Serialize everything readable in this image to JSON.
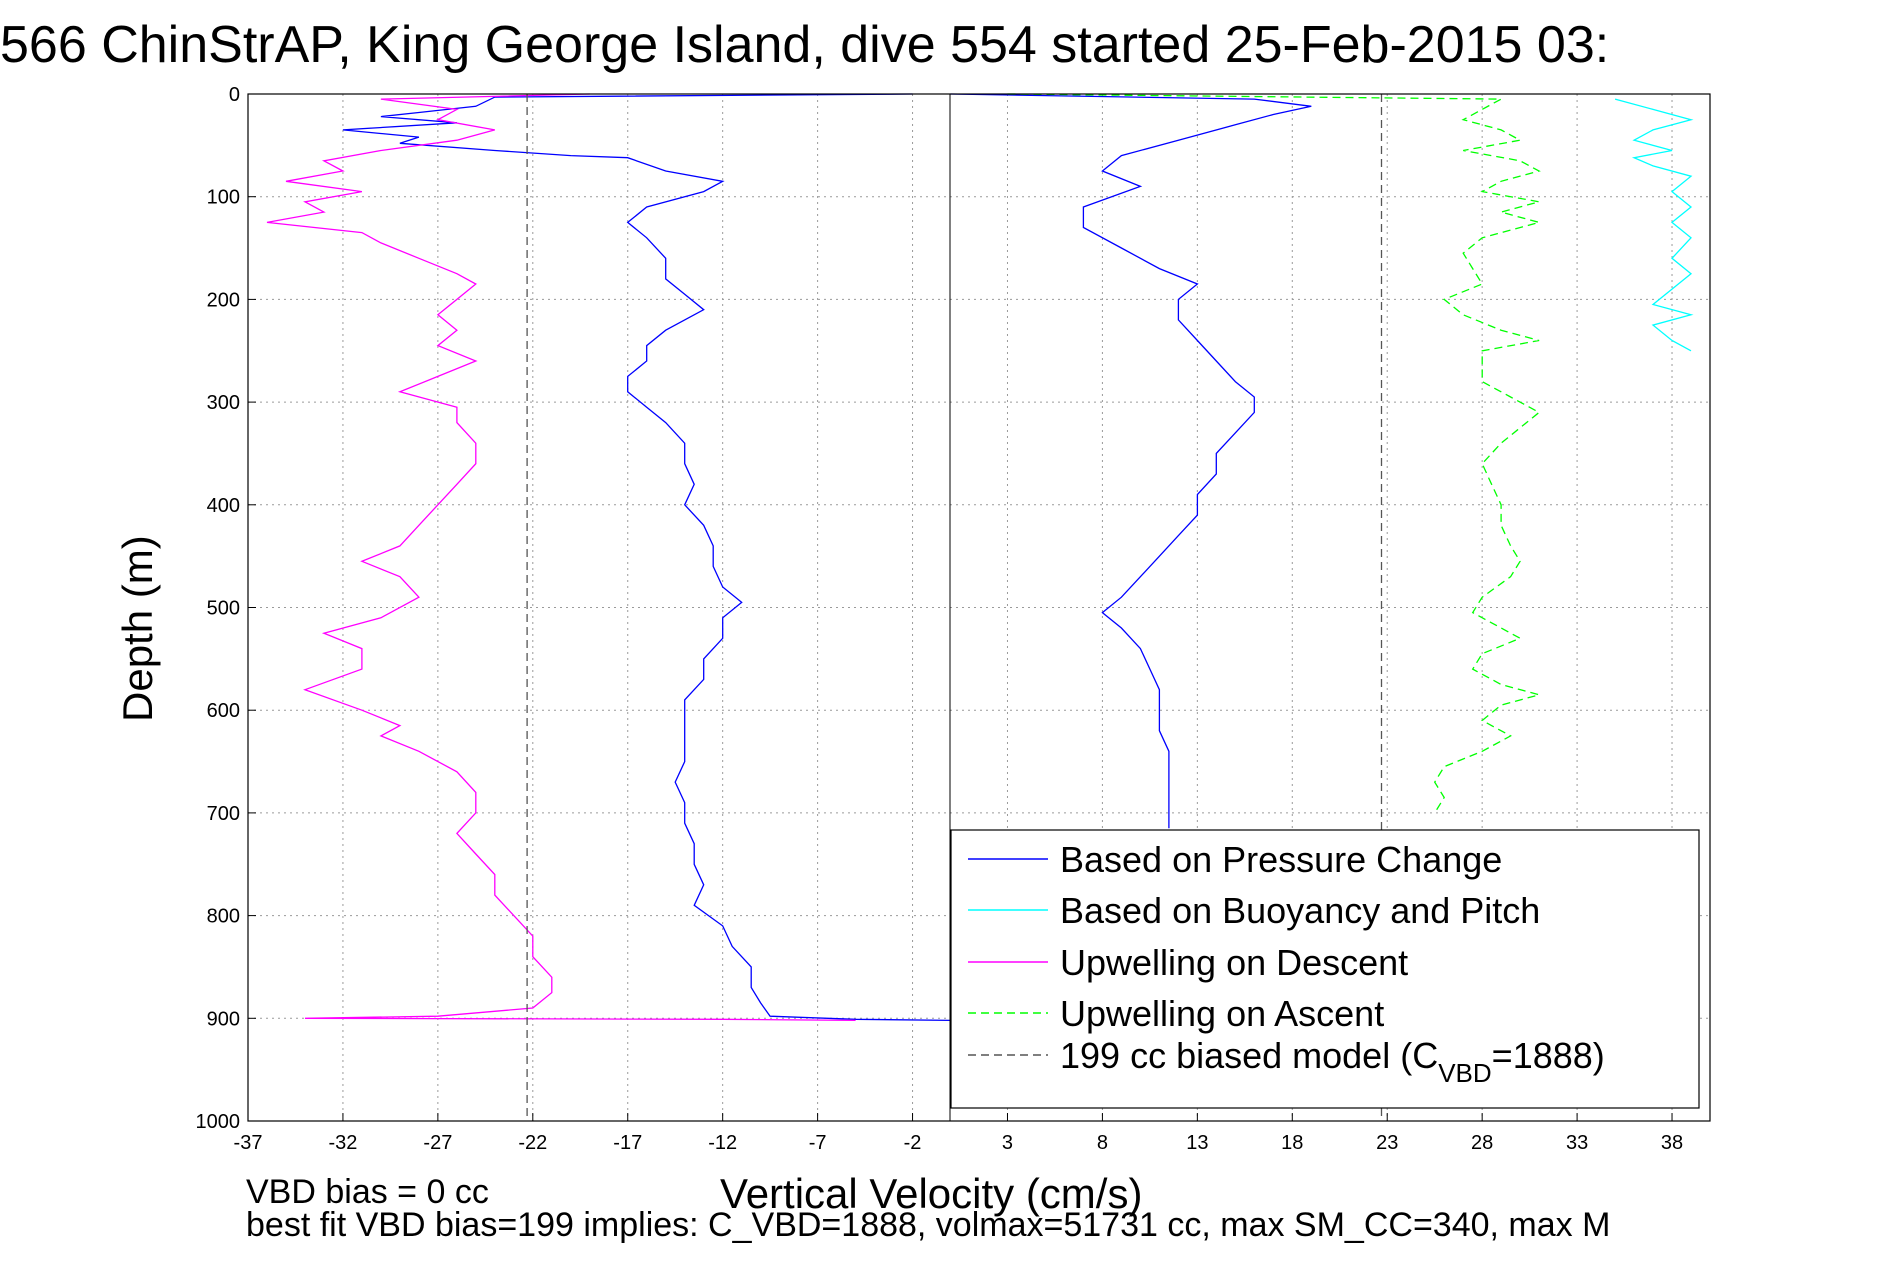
{
  "chart_data": {
    "type": "line",
    "title": "566 ChinStrAP, King George Island, dive 554 started 25-Feb-2015 03:",
    "xlabel": "Vertical Velocity (cm/s)",
    "ylabel": "Depth (m)",
    "xlim": [
      -37,
      40
    ],
    "ylim": [
      0,
      1000
    ],
    "y_reversed": true,
    "grid": true,
    "legend_position": "lower-right",
    "x_ticks": [
      "-37",
      "-32",
      "-27",
      "-22",
      "-17",
      "-12",
      "-7",
      "-2",
      "3",
      "8",
      "13",
      "18",
      "23",
      "28",
      "33",
      "38"
    ],
    "y_ticks": [
      "0",
      "100",
      "200",
      "300",
      "400",
      "500",
      "600",
      "700",
      "800",
      "900",
      "1000"
    ],
    "series": [
      {
        "name": "Based on Pressure Change",
        "color": "#0000ff",
        "style": "solid",
        "points": [
          [
            -2,
            0
          ],
          [
            -24,
            3
          ],
          [
            -25,
            12
          ],
          [
            -28,
            18
          ],
          [
            -30,
            22
          ],
          [
            -26,
            28
          ],
          [
            -32,
            35
          ],
          [
            -28,
            42
          ],
          [
            -29,
            48
          ],
          [
            -24,
            55
          ],
          [
            -20,
            60
          ],
          [
            -17,
            62
          ],
          [
            -15,
            75
          ],
          [
            -12,
            85
          ],
          [
            -13,
            95
          ],
          [
            -16,
            110
          ],
          [
            -17,
            125
          ],
          [
            -16,
            140
          ],
          [
            -15,
            160
          ],
          [
            -15,
            180
          ],
          [
            -14,
            195
          ],
          [
            -13,
            210
          ],
          [
            -15,
            230
          ],
          [
            -16,
            245
          ],
          [
            -16,
            260
          ],
          [
            -17,
            275
          ],
          [
            -17,
            290
          ],
          [
            -16,
            305
          ],
          [
            -15,
            320
          ],
          [
            -14,
            340
          ],
          [
            -14,
            360
          ],
          [
            -13.5,
            380
          ],
          [
            -14,
            400
          ],
          [
            -13,
            420
          ],
          [
            -12.5,
            440
          ],
          [
            -12.5,
            460
          ],
          [
            -12,
            480
          ],
          [
            -11,
            495
          ],
          [
            -12,
            510
          ],
          [
            -12,
            530
          ],
          [
            -13,
            550
          ],
          [
            -13,
            570
          ],
          [
            -14,
            590
          ],
          [
            -14,
            610
          ],
          [
            -14,
            630
          ],
          [
            -14,
            650
          ],
          [
            -14.5,
            670
          ],
          [
            -14,
            690
          ],
          [
            -14,
            710
          ],
          [
            -13.5,
            730
          ],
          [
            -13.5,
            750
          ],
          [
            -13,
            770
          ],
          [
            -13.5,
            790
          ],
          [
            -12,
            810
          ],
          [
            -11.5,
            830
          ],
          [
            -10.5,
            850
          ],
          [
            -10.5,
            870
          ],
          [
            -10,
            885
          ],
          [
            -9.5,
            898
          ],
          [
            -5,
            901
          ],
          [
            0,
            902
          ]
        ]
      },
      {
        "name": "Based on Pressure Change",
        "color": "#0000ff",
        "style": "solid",
        "points": [
          [
            0,
            0
          ],
          [
            16,
            5
          ],
          [
            19,
            12
          ],
          [
            17,
            20
          ],
          [
            15,
            30
          ],
          [
            12,
            45
          ],
          [
            9,
            60
          ],
          [
            8,
            75
          ],
          [
            10,
            90
          ],
          [
            7,
            110
          ],
          [
            7,
            130
          ],
          [
            9,
            150
          ],
          [
            11,
            170
          ],
          [
            13,
            185
          ],
          [
            12,
            200
          ],
          [
            12,
            220
          ],
          [
            13,
            240
          ],
          [
            14,
            260
          ],
          [
            15,
            280
          ],
          [
            16,
            295
          ],
          [
            16,
            310
          ],
          [
            15,
            330
          ],
          [
            14,
            350
          ],
          [
            14,
            370
          ],
          [
            13,
            390
          ],
          [
            13,
            410
          ],
          [
            12,
            430
          ],
          [
            11,
            450
          ],
          [
            10,
            470
          ],
          [
            9,
            490
          ],
          [
            8,
            505
          ],
          [
            9,
            520
          ],
          [
            10,
            540
          ],
          [
            10.5,
            560
          ],
          [
            11,
            580
          ],
          [
            11,
            600
          ],
          [
            11,
            620
          ],
          [
            11.5,
            640
          ],
          [
            11.5,
            660
          ],
          [
            11.5,
            680
          ],
          [
            11.5,
            700
          ],
          [
            11.5,
            715
          ]
        ]
      },
      {
        "name": "Based on Buoyancy and Pitch",
        "color": "#00ffff",
        "style": "solid",
        "points": [
          [
            35,
            5
          ],
          [
            37,
            15
          ],
          [
            39,
            25
          ],
          [
            37,
            35
          ],
          [
            36,
            45
          ],
          [
            38,
            55
          ],
          [
            36,
            62
          ],
          [
            37,
            70
          ],
          [
            39,
            80
          ],
          [
            38,
            95
          ],
          [
            39,
            110
          ],
          [
            38,
            125
          ],
          [
            39,
            140
          ],
          [
            38,
            160
          ],
          [
            39,
            175
          ],
          [
            38,
            190
          ],
          [
            37,
            205
          ],
          [
            39,
            215
          ],
          [
            37,
            225
          ],
          [
            38,
            240
          ],
          [
            39,
            250
          ]
        ]
      },
      {
        "name": "Upwelling on Descent",
        "color": "#ff00ff",
        "style": "solid",
        "points": [
          [
            -19,
            0
          ],
          [
            -30,
            5
          ],
          [
            -26,
            15
          ],
          [
            -27,
            25
          ],
          [
            -24,
            35
          ],
          [
            -26,
            45
          ],
          [
            -30,
            55
          ],
          [
            -33,
            65
          ],
          [
            -32,
            75
          ],
          [
            -35,
            85
          ],
          [
            -31,
            95
          ],
          [
            -34,
            105
          ],
          [
            -33,
            115
          ],
          [
            -36,
            125
          ],
          [
            -31,
            135
          ],
          [
            -30,
            145
          ],
          [
            -28,
            160
          ],
          [
            -26,
            175
          ],
          [
            -25,
            185
          ],
          [
            -26,
            200
          ],
          [
            -27,
            215
          ],
          [
            -26,
            230
          ],
          [
            -27,
            245
          ],
          [
            -25,
            260
          ],
          [
            -27,
            275
          ],
          [
            -29,
            290
          ],
          [
            -26,
            305
          ],
          [
            -26,
            320
          ],
          [
            -25,
            340
          ],
          [
            -25,
            360
          ],
          [
            -26,
            380
          ],
          [
            -27,
            400
          ],
          [
            -28,
            420
          ],
          [
            -29,
            440
          ],
          [
            -31,
            455
          ],
          [
            -29,
            470
          ],
          [
            -28,
            490
          ],
          [
            -30,
            510
          ],
          [
            -33,
            525
          ],
          [
            -31,
            540
          ],
          [
            -31,
            560
          ],
          [
            -34,
            580
          ],
          [
            -31,
            600
          ],
          [
            -29,
            615
          ],
          [
            -30,
            625
          ],
          [
            -28,
            640
          ],
          [
            -26,
            660
          ],
          [
            -25,
            680
          ],
          [
            -25,
            700
          ],
          [
            -26,
            720
          ],
          [
            -25,
            740
          ],
          [
            -24,
            760
          ],
          [
            -24,
            780
          ],
          [
            -23,
            800
          ],
          [
            -22,
            820
          ],
          [
            -22,
            840
          ],
          [
            -21,
            860
          ],
          [
            -21,
            875
          ],
          [
            -22,
            890
          ],
          [
            -27,
            898
          ],
          [
            -34,
            900
          ],
          [
            -12,
            901
          ],
          [
            -5,
            902
          ]
        ]
      },
      {
        "name": "Upwelling on Ascent",
        "color": "#00ff00",
        "style": "dashed",
        "points": [
          [
            3,
            0
          ],
          [
            29,
            5
          ],
          [
            28,
            15
          ],
          [
            27,
            25
          ],
          [
            29,
            35
          ],
          [
            30,
            45
          ],
          [
            27,
            55
          ],
          [
            30,
            65
          ],
          [
            31,
            75
          ],
          [
            29,
            85
          ],
          [
            28,
            95
          ],
          [
            31,
            105
          ],
          [
            29,
            115
          ],
          [
            31,
            125
          ],
          [
            28,
            140
          ],
          [
            27,
            155
          ],
          [
            27.5,
            170
          ],
          [
            28,
            185
          ],
          [
            26,
            200
          ],
          [
            27,
            215
          ],
          [
            29,
            230
          ],
          [
            31,
            240
          ],
          [
            28,
            250
          ],
          [
            28,
            265
          ],
          [
            28,
            280
          ],
          [
            29.5,
            295
          ],
          [
            31,
            310
          ],
          [
            30,
            325
          ],
          [
            29,
            340
          ],
          [
            28,
            360
          ],
          [
            28.5,
            380
          ],
          [
            29,
            400
          ],
          [
            29,
            420
          ],
          [
            29.5,
            440
          ],
          [
            30,
            455
          ],
          [
            29.5,
            470
          ],
          [
            28,
            490
          ],
          [
            27.5,
            505
          ],
          [
            29,
            520
          ],
          [
            30,
            530
          ],
          [
            28,
            545
          ],
          [
            27.5,
            560
          ],
          [
            29,
            575
          ],
          [
            31,
            585
          ],
          [
            29,
            595
          ],
          [
            28,
            610
          ],
          [
            29.5,
            625
          ],
          [
            28,
            640
          ],
          [
            26,
            655
          ],
          [
            25.5,
            670
          ],
          [
            26,
            685
          ],
          [
            25.5,
            700
          ]
        ]
      },
      {
        "name": "199 cc biased model (C_VBD=1888)",
        "color": "#555555",
        "style": "dashed",
        "points": [
          [
            -22.3,
            0
          ],
          [
            -22.3,
            1000
          ]
        ]
      },
      {
        "name": "199 cc biased model (C_VBD=1888)",
        "color": "#555555",
        "style": "dashed",
        "points": [
          [
            22.7,
            0
          ],
          [
            22.7,
            1000
          ]
        ]
      }
    ],
    "legend": {
      "entries": [
        {
          "label": "Based on Pressure Change",
          "color": "#0000ff",
          "style": "solid"
        },
        {
          "label": "Based on Buoyancy and Pitch",
          "color": "#00ffff",
          "style": "solid"
        },
        {
          "label": "Upwelling on Descent",
          "color": "#ff00ff",
          "style": "solid"
        },
        {
          "label": "Upwelling on Ascent",
          "color": "#00ff00",
          "style": "dashed"
        },
        {
          "label_main": "199 cc biased model (C",
          "label_sub": "VBD",
          "label_end": "=1888)",
          "color": "#555555",
          "style": "dashed"
        }
      ]
    },
    "annotations": [
      "VBD bias = 0 cc",
      "best fit VBD bias=199 implies: C_VBD=1888, volmax=51731 cc, max SM_CC=340, max M"
    ]
  }
}
